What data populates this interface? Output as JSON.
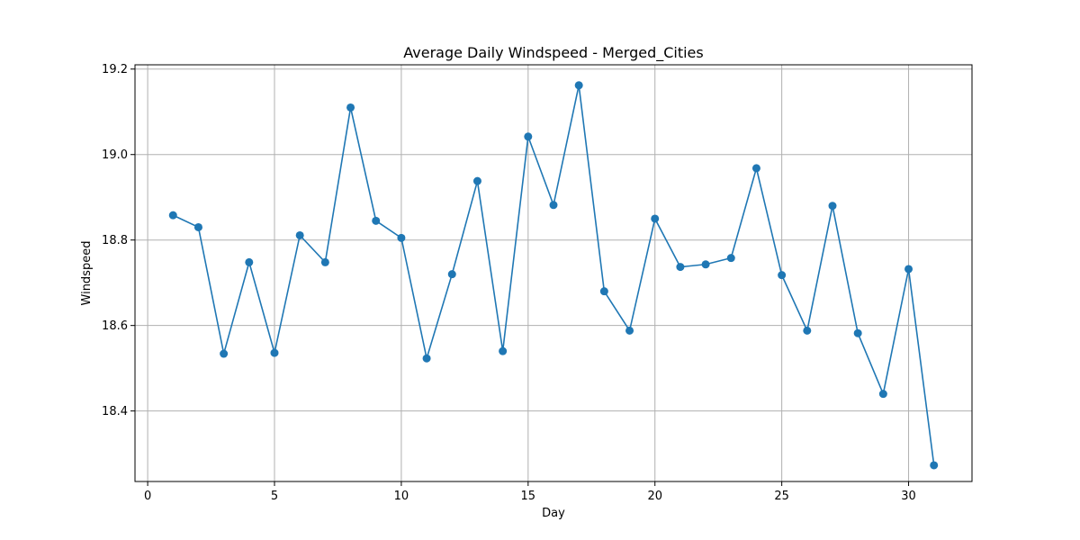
{
  "chart_data": {
    "type": "line",
    "title": "Average Daily Windspeed - Merged_Cities",
    "xlabel": "Day",
    "ylabel": "Windspeed",
    "xlim": [
      -0.5,
      32.5
    ],
    "ylim": [
      18.235,
      19.21
    ],
    "xticks": [
      0,
      5,
      10,
      15,
      20,
      25,
      30
    ],
    "yticks": [
      18.4,
      18.6,
      18.8,
      19.0,
      19.2
    ],
    "ytick_labels": [
      "18.4",
      "18.6",
      "18.8",
      "19.0",
      "19.2"
    ],
    "grid": true,
    "line_color": "#1f77b4",
    "marker": "circle",
    "x": [
      1,
      2,
      3,
      4,
      5,
      6,
      7,
      8,
      9,
      10,
      11,
      12,
      13,
      14,
      15,
      16,
      17,
      18,
      19,
      20,
      21,
      22,
      23,
      24,
      25,
      26,
      27,
      28,
      29,
      30,
      31
    ],
    "values": [
      18.858,
      18.83,
      18.534,
      18.748,
      18.536,
      18.811,
      18.748,
      19.11,
      18.845,
      18.805,
      18.523,
      18.72,
      18.938,
      18.54,
      19.042,
      18.882,
      19.162,
      18.68,
      18.588,
      18.85,
      18.737,
      18.743,
      18.758,
      18.968,
      18.718,
      18.588,
      18.88,
      18.582,
      18.44,
      18.732,
      18.273
    ]
  }
}
